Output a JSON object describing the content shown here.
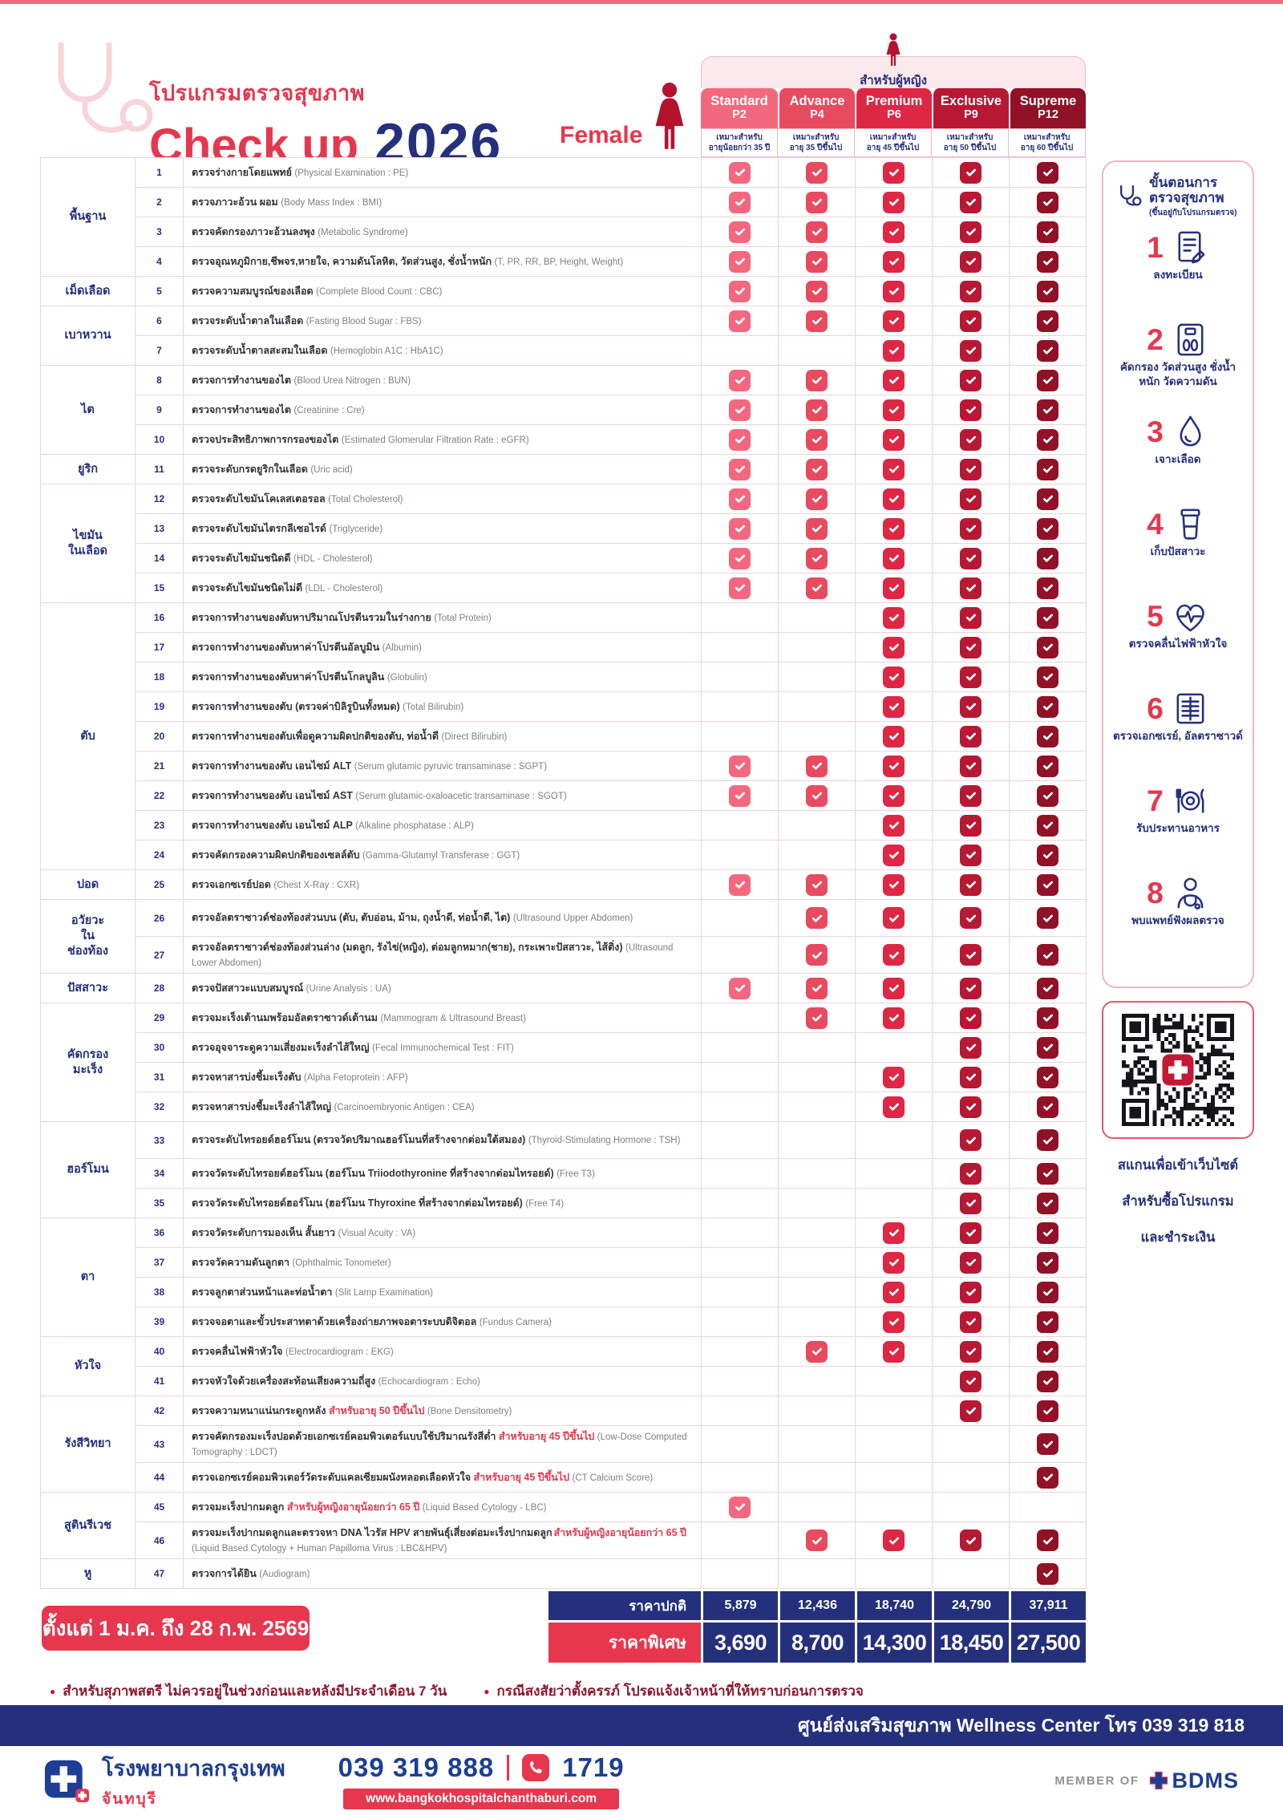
{
  "header": {
    "program_label": "โปรแกรมตรวจสุขภาพ",
    "title": "Check up",
    "year": "2026",
    "gender": "Female",
    "audience_banner": "สำหรับผู้หญิง"
  },
  "packages": [
    {
      "name": "Standard",
      "code": "P2",
      "suit_label": "เหมาะสำหรับ",
      "suit_age": "อายุน้อยกว่า 35 ปี",
      "color": "#f4687f",
      "check_color": "#f4687f"
    },
    {
      "name": "Advance",
      "code": "P4",
      "suit_label": "เหมาะสำหรับ",
      "suit_age": "อายุ 35 ปีขึ้นไป",
      "color": "#e84a60",
      "check_color": "#e84a60"
    },
    {
      "name": "Premium",
      "code": "P6",
      "suit_label": "เหมาะสำหรับ",
      "suit_age": "อายุ 45 ปีขึ้นไป",
      "color": "#dd2745",
      "check_color": "#dd2745"
    },
    {
      "name": "Exclusive",
      "code": "P9",
      "suit_label": "เหมาะสำหรับ",
      "suit_age": "อายุ 50 ปีขึ้นไป",
      "color": "#b81834",
      "check_color": "#b81834"
    },
    {
      "name": "Supreme",
      "code": "P12",
      "suit_label": "เหมาะสำหรับ",
      "suit_age": "อายุ 60 ปีขึ้นไป",
      "color": "#911127",
      "check_color": "#911127"
    }
  ],
  "table": {
    "groups": [
      {
        "label": "พื้นฐาน",
        "start": 1,
        "end": 4
      },
      {
        "label": "เม็ดเลือด",
        "start": 5,
        "end": 5
      },
      {
        "label": "เบาหวาน",
        "start": 6,
        "end": 7
      },
      {
        "label": "ไต",
        "start": 8,
        "end": 10
      },
      {
        "label": "ยูริก",
        "start": 11,
        "end": 11
      },
      {
        "label": "ไขมัน\nในเลือด",
        "start": 12,
        "end": 15
      },
      {
        "label": "ตับ",
        "start": 16,
        "end": 24
      },
      {
        "label": "ปอด",
        "start": 25,
        "end": 25
      },
      {
        "label": "อวัยวะ\nใน\nช่องท้อง",
        "start": 26,
        "end": 27
      },
      {
        "label": "ปัสสาวะ",
        "start": 28,
        "end": 28
      },
      {
        "label": "คัดกรอง\nมะเร็ง",
        "start": 29,
        "end": 32
      },
      {
        "label": "ฮอร์โมน",
        "start": 33,
        "end": 35
      },
      {
        "label": "ตา",
        "start": 36,
        "end": 39
      },
      {
        "label": "หัวใจ",
        "start": 40,
        "end": 41
      },
      {
        "label": "รังสีวิทยา",
        "start": 42,
        "end": 44
      },
      {
        "label": "สูตินรีเวช",
        "start": 45,
        "end": 46
      },
      {
        "label": "หู",
        "start": 47,
        "end": 47
      }
    ],
    "rows": [
      {
        "num": 1,
        "th": "ตรวจร่างกายโดยแพทย์",
        "en": "(Physical Examination : PE)",
        "checks": [
          1,
          1,
          1,
          1,
          1
        ]
      },
      {
        "num": 2,
        "th": "ตรวจภาวะอ้วน ผอม",
        "en": "(Body Mass Index : BMI)",
        "checks": [
          1,
          1,
          1,
          1,
          1
        ]
      },
      {
        "num": 3,
        "th": "ตรวจคัดกรองภาวะอ้วนลงพุง",
        "en": "(Metabolic Syndrome)",
        "checks": [
          1,
          1,
          1,
          1,
          1
        ]
      },
      {
        "num": 4,
        "th": "ตรวจอุณหภูมิกาย,ชีพจร,หายใจ, ความดันโลหิต, วัดส่วนสูง, ชั่งน้ำหนัก",
        "en": "(T, PR, RR, BP, Height, Weight)",
        "checks": [
          1,
          1,
          1,
          1,
          1
        ]
      },
      {
        "num": 5,
        "th": "ตรวจความสมบูรณ์ของเลือด",
        "en": "(Complete Blood Count : CBC)",
        "checks": [
          1,
          1,
          1,
          1,
          1
        ]
      },
      {
        "num": 6,
        "th": "ตรวจระดับน้ำตาลในเลือด",
        "en": "(Fasting Blood Sugar : FBS)",
        "checks": [
          1,
          1,
          1,
          1,
          1
        ]
      },
      {
        "num": 7,
        "th": "ตรวจระดับน้ำตาลสะสมในเลือด",
        "en": "(Hemoglobin A1C : HbA1C)",
        "checks": [
          0,
          0,
          1,
          1,
          1
        ]
      },
      {
        "num": 8,
        "th": "ตรวจการทำงานของไต",
        "en": "(Blood Urea Nitrogen : BUN)",
        "checks": [
          1,
          1,
          1,
          1,
          1
        ]
      },
      {
        "num": 9,
        "th": "ตรวจการทำงานของไต",
        "en": "(Creatinine : Cre)",
        "checks": [
          1,
          1,
          1,
          1,
          1
        ]
      },
      {
        "num": 10,
        "th": "ตรวจประสิทธิภาพการกรองของไต",
        "en": "(Estimated Glomerular Filtration Rate : eGFR)",
        "checks": [
          1,
          1,
          1,
          1,
          1
        ]
      },
      {
        "num": 11,
        "th": "ตรวจระดับกรดยูริกในเลือด",
        "en": "(Uric acid)",
        "checks": [
          1,
          1,
          1,
          1,
          1
        ]
      },
      {
        "num": 12,
        "th": "ตรวจระดับไขมันโคเลสเตอรอล",
        "en": "(Total Cholesterol)",
        "checks": [
          1,
          1,
          1,
          1,
          1
        ]
      },
      {
        "num": 13,
        "th": "ตรวจระดับไขมันไตรกลีเซอไรด์",
        "en": "(Triglyceride)",
        "checks": [
          1,
          1,
          1,
          1,
          1
        ]
      },
      {
        "num": 14,
        "th": "ตรวจระดับไขมันชนิดดี",
        "en": "(HDL - Cholesterol)",
        "checks": [
          1,
          1,
          1,
          1,
          1
        ]
      },
      {
        "num": 15,
        "th": "ตรวจระดับไขมันชนิดไม่ดี",
        "en": "(LDL - Cholesterol)",
        "checks": [
          1,
          1,
          1,
          1,
          1
        ]
      },
      {
        "num": 16,
        "th": "ตรวจการทำงานของตับหาปริมาณโปรตีนรวมในร่างกาย",
        "en": "(Total Protein)",
        "checks": [
          0,
          0,
          1,
          1,
          1
        ]
      },
      {
        "num": 17,
        "th": "ตรวจการทำงานของตับหาค่าโปรตีนอัลบูมิน",
        "en": "(Albumin)",
        "checks": [
          0,
          0,
          1,
          1,
          1
        ]
      },
      {
        "num": 18,
        "th": "ตรวจการทำงานของตับหาค่าโปรตีนโกลบูลิน",
        "en": "(Globulin)",
        "checks": [
          0,
          0,
          1,
          1,
          1
        ]
      },
      {
        "num": 19,
        "th": "ตรวจการทำงานของตับ (ตรวจค่าบิลิรูบินทั้งหมด)",
        "en": "(Total Bilirubin)",
        "checks": [
          0,
          0,
          1,
          1,
          1
        ]
      },
      {
        "num": 20,
        "th": "ตรวจการทำงานของตับเพื่อดูความผิดปกติของตับ, ท่อน้ำดี",
        "en": "(Direct Bilirubin)",
        "checks": [
          0,
          0,
          1,
          1,
          1
        ]
      },
      {
        "num": 21,
        "th": "ตรวจการทำงานของตับ เอนไซม์ ALT",
        "en": "(Serum glutamic pyruvic transaminase : SGPT)",
        "checks": [
          1,
          1,
          1,
          1,
          1
        ]
      },
      {
        "num": 22,
        "th": "ตรวจการทำงานของตับ เอนไซม์ AST",
        "en": "(Serum glutamic-oxaloacetic transaminase : SGOT)",
        "checks": [
          1,
          1,
          1,
          1,
          1
        ]
      },
      {
        "num": 23,
        "th": "ตรวจการทำงานของตับ เอนไซม์ ALP",
        "en": "(Alkaline phosphatase : ALP)",
        "checks": [
          0,
          0,
          1,
          1,
          1
        ]
      },
      {
        "num": 24,
        "th": "ตรวจคัดกรองความผิดปกติของเซลล์ตับ",
        "en": "(Gamma-Glutamyl Transferase : GGT)",
        "checks": [
          0,
          0,
          1,
          1,
          1
        ]
      },
      {
        "num": 25,
        "th": "ตรวจเอกซเรย์ปอด",
        "en": "(Chest X-Ray : CXR)",
        "checks": [
          1,
          1,
          1,
          1,
          1
        ]
      },
      {
        "num": 26,
        "th": "ตรวจอัลตราซาวด์ช่องท้องส่วนบน (ตับ, ตับอ่อน, ม้าม, ถุงน้ำดี, ท่อน้ำดี, ไต)",
        "en": "(Ultrasound Upper Abdomen)",
        "checks": [
          0,
          1,
          1,
          1,
          1
        ],
        "tall": true
      },
      {
        "num": 27,
        "th": "ตรวจอัลตราซาวด์ช่องท้องส่วนล่าง (มดลูก, รังไข่(หญิง), ต่อมลูกหมาก(ชาย), กระเพาะปัสสาวะ, ไส้ติ่ง)",
        "en": "(Ultrasound Lower Abdomen)",
        "checks": [
          0,
          1,
          1,
          1,
          1
        ],
        "tall": true
      },
      {
        "num": 28,
        "th": "ตรวจปัสสาวะแบบสมบูรณ์",
        "en": "(Urine Analysis : UA)",
        "checks": [
          1,
          1,
          1,
          1,
          1
        ]
      },
      {
        "num": 29,
        "th": "ตรวจมะเร็งเต้านมพร้อมอัลตราซาวด์เต้านม",
        "en": "(Mammogram & Ultrasound Breast)",
        "checks": [
          0,
          1,
          1,
          1,
          1
        ]
      },
      {
        "num": 30,
        "th": "ตรวจอุจจาระดูความเสี่ยงมะเร็งลำไส้ใหญ่",
        "en": "(Fecal Immunochemical Test : FIT)",
        "checks": [
          0,
          0,
          0,
          1,
          1
        ]
      },
      {
        "num": 31,
        "th": "ตรวจหาสารบ่งชี้มะเร็งตับ",
        "en": "(Alpha Fetoprotein : AFP)",
        "checks": [
          0,
          0,
          1,
          1,
          1
        ]
      },
      {
        "num": 32,
        "th": "ตรวจหาสารบ่งชี้มะเร็งลำไส้ใหญ่",
        "en": "(Carcinoembryonic Antigen : CEA)",
        "checks": [
          0,
          0,
          1,
          1,
          1
        ]
      },
      {
        "num": 33,
        "th": "ตรวจระดับไทรอยด์ฮอร์โมน (ตรวจวัดปริมาณฮอร์โมนที่สร้างจากต่อมใต้สมอง)",
        "en": "(Thyroid-Stimulating Hormone : TSH)",
        "checks": [
          0,
          0,
          0,
          1,
          1
        ],
        "tall": true
      },
      {
        "num": 34,
        "th": "ตรวจวัดระดับไทรอยด์ฮอร์โมน (ฮอร์โมน Triiodothyronine ที่สร้างจากต่อมไทรอยด์)",
        "en": "(Free T3)",
        "checks": [
          0,
          0,
          0,
          1,
          1
        ]
      },
      {
        "num": 35,
        "th": "ตรวจวัดระดับไทรอยด์ฮอร์โมน (ฮอร์โมน Thyroxine ที่สร้างจากต่อมไทรอยด์)",
        "en": "(Free T4)",
        "checks": [
          0,
          0,
          0,
          1,
          1
        ]
      },
      {
        "num": 36,
        "th": "ตรวจวัดระดับการมองเห็น สั้นยาว",
        "en": "(Visual Acuity : VA)",
        "checks": [
          0,
          0,
          1,
          1,
          1
        ]
      },
      {
        "num": 37,
        "th": "ตรวจวัดความดันลูกตา",
        "en": "(Ophthalmic Tonometer)",
        "checks": [
          0,
          0,
          1,
          1,
          1
        ]
      },
      {
        "num": 38,
        "th": "ตรวจลูกตาส่วนหน้าและท่อน้ำตา",
        "en": "(Slit Lamp Examination)",
        "checks": [
          0,
          0,
          1,
          1,
          1
        ]
      },
      {
        "num": 39,
        "th": "ตรวจจอตาและขั้วประสาทตาด้วยเครื่องถ่ายภาพจอตาระบบดิจิตอล",
        "en": "(Fundus Camera)",
        "checks": [
          0,
          0,
          1,
          1,
          1
        ]
      },
      {
        "num": 40,
        "th": "ตรวจคลื่นไฟฟ้าหัวใจ",
        "en": "(Electrocardiogram : EKG)",
        "checks": [
          0,
          1,
          1,
          1,
          1
        ]
      },
      {
        "num": 41,
        "th": "ตรวจหัวใจด้วยเครื่องสะท้อนเสียงความถี่สูง",
        "en": "(Echocardiogram : Echo)",
        "checks": [
          0,
          0,
          0,
          1,
          1
        ]
      },
      {
        "num": 42,
        "th": "ตรวจความหนาแน่นกระดูกหลัง",
        "note": "สำหรับอายุ 50 ปีขึ้นไป",
        "en": "(Bone Densitometry)",
        "checks": [
          0,
          0,
          0,
          1,
          1
        ]
      },
      {
        "num": 43,
        "th": "ตรวจคัดกรองมะเร็งปอดด้วยเอกซเรย์คอมพิวเตอร์แบบใช้ปริมาณรังสีต่ำ",
        "note": "สำหรับอายุ 45 ปีขึ้นไป",
        "en": "(Low-Dose Computed Tomography : LDCT)",
        "checks": [
          0,
          0,
          0,
          0,
          1
        ],
        "tall": true
      },
      {
        "num": 44,
        "th": "ตรวจเอกซเรย์คอมพิวเตอร์วัดระดับแคลเซียมผนังหลอดเลือดหัวใจ",
        "note": "สำหรับอายุ 45 ปีขึ้นไป",
        "en": "(CT Calcium Score)",
        "checks": [
          0,
          0,
          0,
          0,
          1
        ]
      },
      {
        "num": 45,
        "th": "ตรวจมะเร็งปากมดลูก",
        "note": "สำหรับผู้หญิงอายุน้อยกว่า 65 ปี",
        "en": "(Liquid Based Cytology - LBC)",
        "checks": [
          1,
          0,
          0,
          0,
          0
        ]
      },
      {
        "num": 46,
        "th": "ตรวจมะเร็งปากมดลูกและตรวจหา DNA ไวรัส HPV สายพันธุ์เสี่ยงต่อมะเร็งปากมดลูก",
        "note": "สำหรับผู้หญิงอายุน้อยกว่า 65 ปี",
        "note_pos": "right",
        "en": "(Liquid Based Cytology + Human Papilloma Virus : LBC&HPV)",
        "checks": [
          0,
          1,
          1,
          1,
          1
        ],
        "tall": true
      },
      {
        "num": 47,
        "th": "ตรวจการได้ยิน",
        "en": "(Audiogram)",
        "checks": [
          0,
          0,
          0,
          0,
          1
        ]
      }
    ]
  },
  "steps": {
    "title_line1": "ขั้นตอนการ",
    "title_line2": "ตรวจสุขภาพ",
    "subtitle": "(ขึ้นอยู่กับโปรแกรมตรวจ)",
    "items": [
      {
        "num": "1",
        "icon": "register-icon",
        "label": "ลงทะเบียน"
      },
      {
        "num": "2",
        "icon": "screening-scale-icon",
        "label": "คัดกรอง วัดส่วนสูง ชั่งน้ำหนัก วัดความดัน"
      },
      {
        "num": "3",
        "icon": "blood-draw-icon",
        "label": "เจาะเลือด"
      },
      {
        "num": "4",
        "icon": "urine-sample-icon",
        "label": "เก็บปัสสาวะ"
      },
      {
        "num": "5",
        "icon": "ekg-heart-icon",
        "label": "ตรวจคลื่นไฟฟ้าหัวใจ"
      },
      {
        "num": "6",
        "icon": "xray-icon",
        "label": "ตรวจเอกซเรย์, อัลตราซาวด์"
      },
      {
        "num": "7",
        "icon": "meal-icon",
        "label": "รับประทานอาหาร"
      },
      {
        "num": "8",
        "icon": "doctor-icon",
        "label": "พบแพทย์ฟังผลตรวจ"
      }
    ]
  },
  "qr": {
    "caption_lines": [
      "สแกนเพื่อเข้าเว็บไซต์",
      "สำหรับซื้อโปรแกรม",
      "และชำระเงิน"
    ]
  },
  "pricing": {
    "promo_period": "ตั้งแต่ 1 ม.ค. ถึง 28 ก.พ. 2569",
    "normal_label": "ราคาปกติ",
    "special_label": "ราคาพิเศษ",
    "normal_prices": [
      "5,879",
      "12,436",
      "18,740",
      "24,790",
      "37,911"
    ],
    "special_prices": [
      "3,690",
      "8,700",
      "14,300",
      "18,450",
      "27,500"
    ]
  },
  "notes": [
    "สำหรับสุภาพสตรี ไม่ควรอยู่ในช่วงก่อนและหลังมีประจำเดือน 7 วัน",
    "กรณีสงสัยว่าตั้งครรภ์ โปรดแจ้งเจ้าหน้าที่ให้ทราบก่อนการตรวจ"
  ],
  "wellness_bar": "ศูนย์ส่งเสริมสุขภาพ Wellness Center โทร 039 319 818",
  "footer": {
    "hospital_name": "โรงพยาบาลกรุงเทพ",
    "branch": "จันทบุรี",
    "phone_main": "039 319 888",
    "phone_hotline": "1719",
    "website": "www.bangkokhospitalchanthaburi.com",
    "member_of": "MEMBER OF",
    "member_brand": "BDMS"
  },
  "colors": {
    "navy": "#25307c",
    "red": "#e6374e",
    "deep_red": "#b5122e"
  }
}
